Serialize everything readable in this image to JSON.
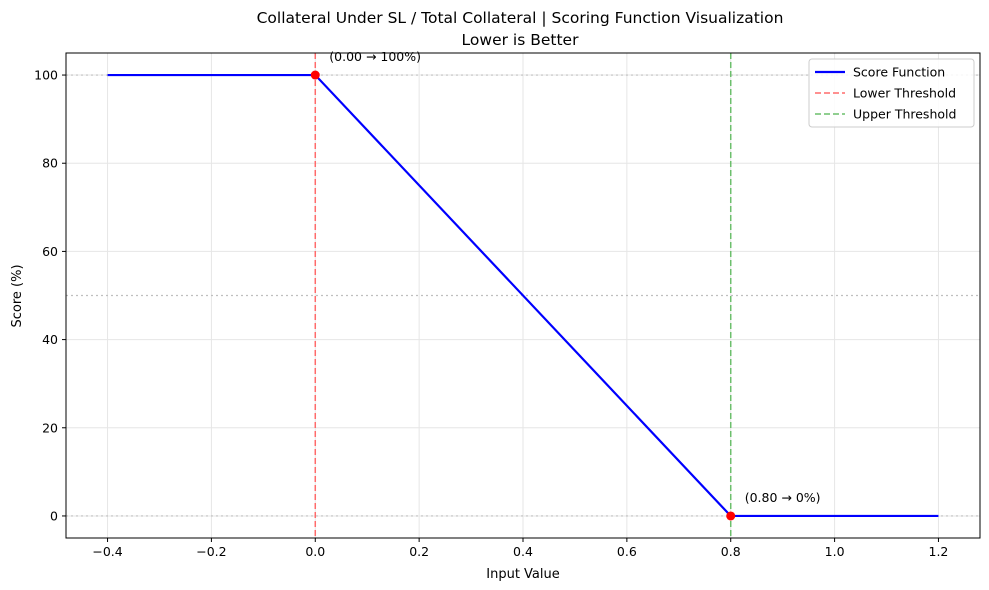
{
  "chart_data": {
    "type": "line",
    "title": "Collateral Under SL / Total Collateral | Scoring Function Visualization",
    "subtitle": "Lower is Better",
    "xlabel": "Input Value",
    "ylabel": "Score (%)",
    "xlim": [
      -0.48,
      1.28
    ],
    "ylim": [
      -5,
      105
    ],
    "x_ticks": [
      -0.4,
      -0.2,
      0.0,
      0.2,
      0.4,
      0.6,
      0.8,
      1.0,
      1.2
    ],
    "x_tick_labels": [
      "−0.4",
      "−0.2",
      "0.0",
      "0.2",
      "0.4",
      "0.6",
      "0.8",
      "1.0",
      "1.2"
    ],
    "y_ticks": [
      0,
      20,
      40,
      60,
      80,
      100
    ],
    "y_tick_labels": [
      "0",
      "20",
      "40",
      "60",
      "80",
      "100"
    ],
    "grid": true,
    "legend_position": "top-right",
    "series": [
      {
        "name": "Score Function",
        "color": "#0000ff",
        "style": "solid",
        "x": [
          -0.4,
          0.0,
          0.8,
          1.2
        ],
        "y": [
          100,
          100,
          0,
          0
        ]
      }
    ],
    "thresholds": [
      {
        "name": "Lower Threshold",
        "x": 0.0,
        "color": "#ff6b6b",
        "style": "dashed"
      },
      {
        "name": "Upper Threshold",
        "x": 0.8,
        "color": "#6cbf6c",
        "style": "dashed"
      }
    ],
    "reference_lines_y": [
      0,
      50,
      100
    ],
    "key_points": [
      {
        "x": 0.0,
        "y": 100,
        "label": "(0.00 → 100%)",
        "color": "#ff0000"
      },
      {
        "x": 0.8,
        "y": 0,
        "label": "(0.80 → 0%)",
        "color": "#ff0000"
      }
    ]
  }
}
